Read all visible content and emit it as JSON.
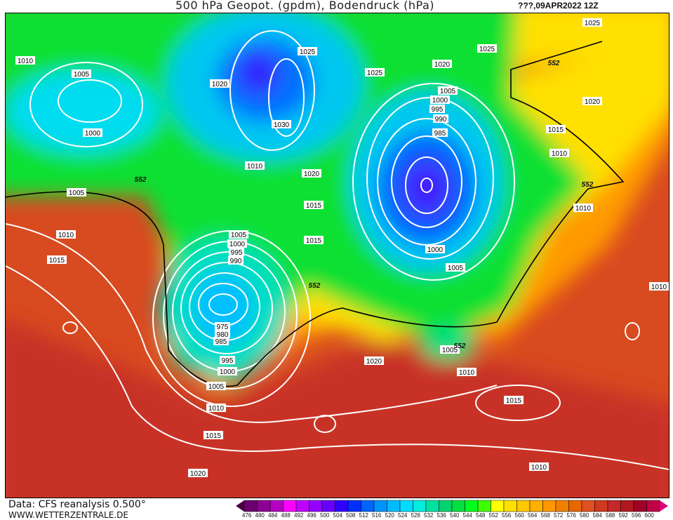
{
  "header": {
    "title": "500 hPa Geopot. (gpdm), Bodendruck (hPa)",
    "date": "???,09APR2022 12Z"
  },
  "footer": {
    "source": "Data: CFS reanalysis 0.500°",
    "site": "WWW.WETTERZENTRALE.DE"
  },
  "legend": {
    "values": [
      476,
      480,
      484,
      488,
      492,
      496,
      500,
      504,
      508,
      512,
      516,
      520,
      524,
      528,
      532,
      536,
      540,
      544,
      548,
      552,
      556,
      560,
      564,
      568,
      572,
      576,
      580,
      584,
      588,
      592,
      596,
      600
    ],
    "colors": [
      "#4a0040",
      "#6a006e",
      "#8c0094",
      "#b400c0",
      "#ff00ff",
      "#c000ff",
      "#9400ff",
      "#6800ff",
      "#3000ff",
      "#0030ff",
      "#0064ff",
      "#0094ff",
      "#00bcff",
      "#00dcff",
      "#00ece0",
      "#00e0a0",
      "#00d470",
      "#00e040",
      "#00ff20",
      "#40ff00",
      "#ffff00",
      "#ffe000",
      "#ffc800",
      "#ffb000",
      "#ff9800",
      "#f08000",
      "#e86800",
      "#e05020",
      "#d03820",
      "#c42828",
      "#b01820",
      "#a00028",
      "#c00048",
      "#e0007a"
    ]
  },
  "isobar_labels": [
    "1025",
    "1010",
    "1025",
    "1025",
    "1005",
    "1020",
    "1025",
    "1020",
    "1005",
    "1000",
    "995",
    "990",
    "985",
    "1020",
    "1030",
    "1000",
    "1015",
    "1010",
    "1010",
    "1020",
    "1005",
    "1015",
    "1010",
    "1010",
    "1005",
    "1000",
    "995",
    "990",
    "1015",
    "1015",
    "1000",
    "1005",
    "1010",
    "975",
    "980",
    "985",
    "995",
    "1000",
    "1020",
    "1005",
    "1010",
    "1005",
    "1010",
    "1015",
    "1015",
    "1020",
    "1010"
  ],
  "geopotential_labels": [
    "552",
    "552",
    "552",
    "552",
    "552"
  ]
}
